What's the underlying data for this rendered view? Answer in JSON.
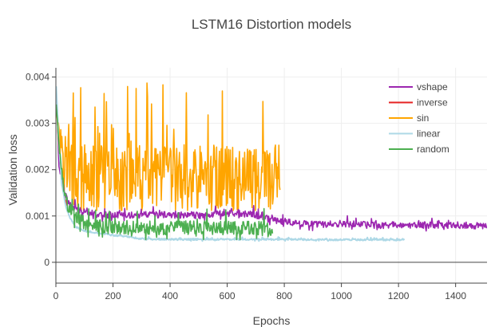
{
  "chart_data": {
    "type": "line",
    "title": "LSTM16 Distortion models",
    "xlabel": "Epochs",
    "ylabel": "Validation loss",
    "xlim": [
      0,
      1510
    ],
    "ylim": [
      -0.00045,
      0.0042
    ],
    "x_ticks": [
      0,
      200,
      400,
      600,
      800,
      1000,
      1200,
      1400
    ],
    "x_tick_labels": [
      "0",
      "200",
      "400",
      "600",
      "800",
      "1000",
      "1200",
      "1400"
    ],
    "y_ticks": [
      0,
      0.001,
      0.002,
      0.003,
      0.004
    ],
    "y_tick_labels": [
      "0",
      "0.001",
      "0.002",
      "0.003",
      "0.004"
    ],
    "grid": true,
    "legend_position": "top-right",
    "series": [
      {
        "name": "vshape",
        "color": "#9c27b0",
        "x": [
          1,
          5,
          10,
          20,
          35,
          50,
          75,
          100,
          150,
          200,
          250,
          300,
          350,
          400,
          500,
          600,
          700,
          760,
          800,
          850,
          900,
          950,
          1000,
          1050,
          1100,
          1150,
          1200,
          1250,
          1300,
          1350,
          1400,
          1450,
          1500,
          1510
        ],
        "y": [
          0.0034,
          0.0033,
          0.0021,
          0.0018,
          0.0014,
          0.0012,
          0.0011,
          0.0011,
          0.001,
          0.001,
          0.001,
          0.001,
          0.001,
          0.001,
          0.001,
          0.00105,
          0.001,
          0.0009,
          0.00085,
          0.00082,
          0.0008,
          0.0008,
          0.00082,
          0.0008,
          0.00078,
          0.00078,
          0.0008,
          0.00078,
          0.00078,
          0.00077,
          0.00078,
          0.00078,
          0.00075,
          0.00075
        ],
        "noise": 0.00012,
        "spikes": [
          [
            1018,
            0.00255
          ],
          [
            1135,
            0.0021
          ],
          [
            1210,
            0.0018
          ],
          [
            1340,
            0.0021
          ],
          [
            1420,
            0.002
          ],
          [
            1475,
            0.0028
          ],
          [
            1493,
            0.0021
          ],
          [
            1505,
            0.0013
          ]
        ]
      },
      {
        "name": "inverse",
        "color": "#e52222",
        "x": [
          1,
          5,
          10,
          20,
          30,
          40
        ],
        "y": [
          0.0034,
          0.0031,
          0.0025,
          0.0018,
          0.0014,
          0.0012
        ],
        "noise": 0.0001,
        "spikes": []
      },
      {
        "name": "sin",
        "color": "#ffa500",
        "x": [
          1,
          10,
          30,
          60,
          100,
          150,
          200,
          300,
          400,
          500,
          600,
          700,
          750,
          785
        ],
        "y": [
          0.0034,
          0.0028,
          0.0021,
          0.0016,
          0.0016,
          0.0016,
          0.0016,
          0.0016,
          0.0016,
          0.0016,
          0.0016,
          0.0016,
          0.0016,
          0.0016
        ],
        "noise": 0.0012,
        "spikes": [
          [
            60,
            0.0042
          ],
          [
            105,
            0.0042
          ],
          [
            240,
            0.0042
          ],
          [
            330,
            0.0042
          ],
          [
            420,
            0.0042
          ],
          [
            500,
            0.0042
          ],
          [
            585,
            0.0042
          ],
          [
            680,
            0.0042
          ],
          [
            760,
            0.0042
          ],
          [
            785,
            0.0042
          ]
        ]
      },
      {
        "name": "linear",
        "color": "#add8e6",
        "x": [
          1,
          5,
          10,
          20,
          35,
          50,
          70,
          100,
          150,
          200,
          250,
          300,
          400,
          500,
          600,
          800,
          1000,
          1221
        ],
        "y": [
          0.0038,
          0.0033,
          0.0026,
          0.0017,
          0.0012,
          0.00095,
          0.00075,
          0.00068,
          0.00062,
          0.00058,
          0.00055,
          0.0005,
          0.00049,
          0.00049,
          0.00049,
          0.00049,
          0.00048,
          0.00048
        ],
        "noise": 3e-05,
        "spikes": [
          [
            45,
            0.0042
          ],
          [
            85,
            0.0042
          ],
          [
            95,
            0.0042
          ],
          [
            110,
            0.0037
          ],
          [
            130,
            0.0042
          ]
        ]
      },
      {
        "name": "random",
        "color": "#4caf50",
        "x": [
          1,
          5,
          10,
          20,
          40,
          60,
          80,
          100,
          150,
          200,
          300,
          400,
          500,
          600,
          700,
          760
        ],
        "y": [
          0.0034,
          0.0031,
          0.0026,
          0.0018,
          0.0012,
          0.001,
          0.0009,
          0.0008,
          0.00075,
          0.0007,
          0.0007,
          0.0007,
          0.0007,
          0.0007,
          0.0007,
          0.00065
        ],
        "noise": 0.00025,
        "spikes": [
          [
            30,
            0.0023
          ],
          [
            55,
            0.0021
          ],
          [
            120,
            0.0018
          ],
          [
            200,
            0.0018
          ],
          [
            260,
            0.0016
          ],
          [
            360,
            0.0015
          ],
          [
            450,
            0.0016
          ],
          [
            560,
            0.0014
          ],
          [
            650,
            0.0015
          ],
          [
            730,
            0.0013
          ]
        ]
      }
    ]
  },
  "colors": {
    "text": "#444444",
    "grid": "#eeeeee",
    "zero_line": "#444444",
    "axis_line": "#444444"
  }
}
